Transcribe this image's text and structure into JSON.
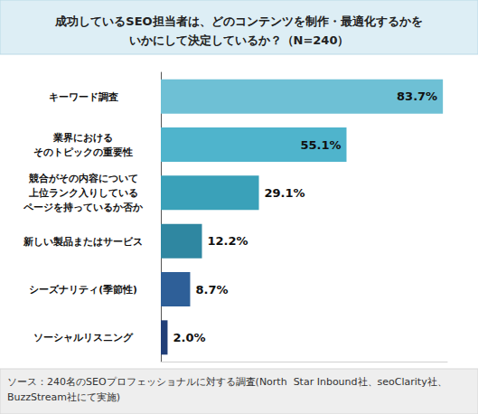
{
  "chart_data": {
    "type": "bar",
    "orientation": "horizontal",
    "title": "成功しているSEO担当者は、どのコンテンツを制作・最適化するかを\nいかにして決定しているか？（N=240）",
    "categories": [
      "キーワード調査",
      "業界における\nそのトピックの重要性",
      "競合がその内容について\n上位ランク入りしている\nページを持っているか否か",
      "新しい製品またはサービス",
      "シーズナリティ(季節性)",
      "ソーシャルリスニング"
    ],
    "values": [
      83.7,
      55.1,
      29.1,
      12.2,
      8.7,
      2.0
    ],
    "value_labels": [
      "83.7%",
      "55.1%",
      "29.1%",
      "12.2%",
      "8.7%",
      "2.0%"
    ],
    "colors": [
      "#6ec0d5",
      "#4fb4cc",
      "#3aa1b9",
      "#2f87a1",
      "#2e5f98",
      "#213f78"
    ],
    "xlim": [
      0,
      85
    ],
    "grid": false,
    "data_labels": true,
    "tick_labels": "y",
    "source": "ソース：240名のSEOプロフェッショナルに対する調査(North  Star Inbound社、seoClarity社、BuzzStream社にて実施)"
  }
}
